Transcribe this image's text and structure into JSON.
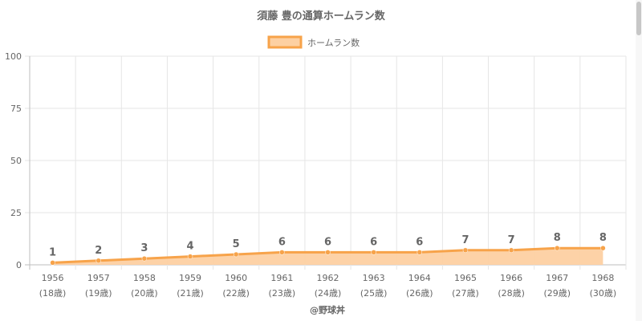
{
  "chart_data": {
    "type": "line",
    "title": "須藤 豊の通算ホームラン数",
    "legend": {
      "label": "ホームラン数",
      "position": "top"
    },
    "categories": [
      "1956",
      "1957",
      "1958",
      "1959",
      "1960",
      "1961",
      "1962",
      "1963",
      "1964",
      "1965",
      "1966",
      "1967",
      "1968"
    ],
    "age_labels": [
      "(18歳)",
      "(19歳)",
      "(20歳)",
      "(21歳)",
      "(22歳)",
      "(23歳)",
      "(24歳)",
      "(25歳)",
      "(26歳)",
      "(27歳)",
      "(28歳)",
      "(29歳)",
      "(30歳)"
    ],
    "series": [
      {
        "name": "ホームラン数",
        "values": [
          1,
          2,
          3,
          4,
          5,
          6,
          6,
          6,
          6,
          7,
          7,
          8,
          8
        ]
      }
    ],
    "ylim": [
      0,
      100
    ],
    "yticks": [
      0,
      25,
      50,
      75,
      100
    ],
    "grid": true,
    "area_fill": true,
    "data_labels": true,
    "colors": {
      "line": "#f7a34a",
      "fill": "#fdd0a2",
      "point": "#f7a34a"
    }
  },
  "footer": {
    "credit": "@野球丼"
  }
}
